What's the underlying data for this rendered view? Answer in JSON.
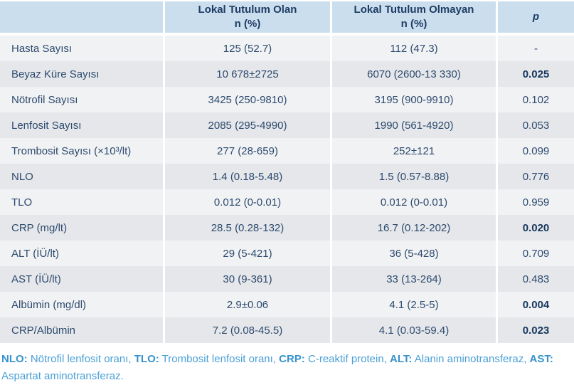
{
  "table": {
    "columns": [
      {
        "label": ""
      },
      {
        "label": "Lokal Tutulum Olan",
        "sub": "n (%)"
      },
      {
        "label": "Lokal Tutulum Olmayan",
        "sub": "n (%)"
      },
      {
        "label": "p"
      }
    ],
    "rows": [
      {
        "label": "Hasta Sayısı",
        "olan": "125 (52.7)",
        "olmayan": "112 (47.3)",
        "p": "-",
        "p_bold": false
      },
      {
        "label": "Beyaz Küre Sayısı",
        "olan": "10 678±2725",
        "olmayan": "6070 (2600-13 330)",
        "p": "0.025",
        "p_bold": true
      },
      {
        "label": "Nötrofil Sayısı",
        "olan": "3425 (250-9810)",
        "olmayan": "3195 (900-9910)",
        "p": "0.102",
        "p_bold": false
      },
      {
        "label": "Lenfosit Sayısı",
        "olan": "2085 (295-4990)",
        "olmayan": "1990 (561-4920)",
        "p": "0.053",
        "p_bold": false
      },
      {
        "label": "Trombosit Sayısı (×10³/lt)",
        "olan": "277 (28-659)",
        "olmayan": "252±121",
        "p": "0.099",
        "p_bold": false
      },
      {
        "label": "NLO",
        "olan": "1.4 (0.18-5.48)",
        "olmayan": "1.5 (0.57-8.88)",
        "p": "0.776",
        "p_bold": false
      },
      {
        "label": "TLO",
        "olan": "0.012 (0-0.01)",
        "olmayan": "0.012 (0-0.01)",
        "p": "0.959",
        "p_bold": false
      },
      {
        "label": "CRP (mg/lt)",
        "olan": "28.5 (0.28-132)",
        "olmayan": "16.7 (0.12-202)",
        "p": "0.020",
        "p_bold": true
      },
      {
        "label": "ALT (İÜ/lt)",
        "olan": "29 (5-421)",
        "olmayan": "36 (5-428)",
        "p": "0.709",
        "p_bold": false
      },
      {
        "label": "AST (İÜ/lt)",
        "olan": "30 (9-361)",
        "olmayan": "33 (13-264)",
        "p": "0.483",
        "p_bold": false
      },
      {
        "label": "Albümin (mg/dl)",
        "olan": "2.9±0.06",
        "olmayan": "4.1 (2.5-5)",
        "p": "0.004",
        "p_bold": true
      },
      {
        "label": "CRP/Albümin",
        "olan": "7.2 (0.08-45.5)",
        "olmayan": "4.1 (0.03-59.4)",
        "p": "0.023",
        "p_bold": true
      }
    ]
  },
  "footnote": {
    "segments": [
      {
        "text": "NLO:",
        "bold": true
      },
      {
        "text": " Nötrofil lenfosit oranı, ",
        "bold": false
      },
      {
        "text": "TLO:",
        "bold": true
      },
      {
        "text": " Trombosit lenfosit oranı, ",
        "bold": false
      },
      {
        "text": "CRP:",
        "bold": true
      },
      {
        "text": " C-reaktif protein, ",
        "bold": false
      },
      {
        "text": "ALT:",
        "bold": true
      },
      {
        "text": " Alanin aminotransferaz, ",
        "bold": false
      },
      {
        "text": "AST:",
        "bold": true
      },
      {
        "text": " Aspartat aminotransferaz.",
        "bold": false
      }
    ]
  },
  "colors": {
    "header_bg": "#cbdeee",
    "row_odd_bg": "#f1f2f4",
    "row_even_bg": "#e5e7ea",
    "text_navy": "#2d4a6e",
    "text_navy_bold": "#17365d",
    "footnote_blue": "#4aa0d6"
  }
}
